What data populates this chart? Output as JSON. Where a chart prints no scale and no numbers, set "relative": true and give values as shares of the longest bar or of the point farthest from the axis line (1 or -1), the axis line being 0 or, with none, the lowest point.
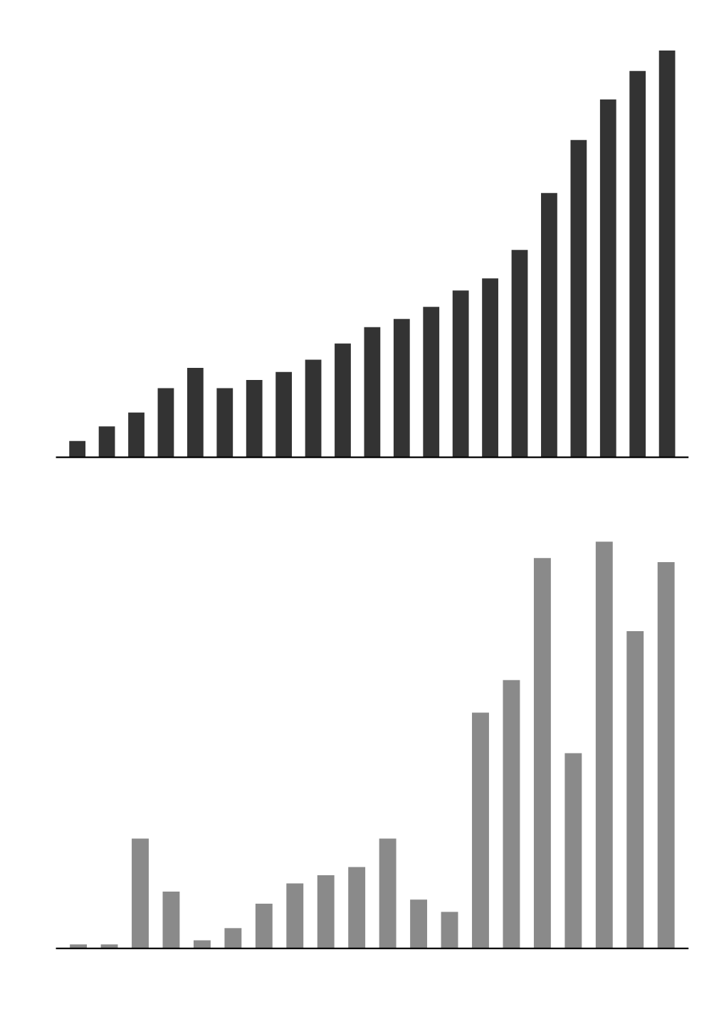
{
  "chart_data": [
    {
      "type": "bar",
      "relative": true,
      "categories": [
        null,
        null,
        null,
        null,
        null,
        null,
        null,
        null,
        null,
        null,
        null,
        null,
        null,
        null,
        null,
        null,
        null,
        null,
        null,
        null,
        null
      ],
      "series": [
        {
          "color": "#333333",
          "values": [
            0.04,
            0.076,
            0.11,
            0.17,
            0.22,
            0.17,
            0.19,
            0.21,
            0.24,
            0.28,
            0.32,
            0.34,
            0.37,
            0.41,
            0.44,
            0.51,
            0.65,
            0.78,
            0.88,
            0.95,
            1.0
          ]
        }
      ]
    },
    {
      "type": "bar",
      "relative": true,
      "categories": [
        null,
        null,
        null,
        null,
        null,
        null,
        null,
        null,
        null,
        null,
        null,
        null,
        null,
        null,
        null,
        null,
        null,
        null,
        null,
        null
      ],
      "series": [
        {
          "color": "#8a8a8a",
          "values": [
            0.01,
            0.01,
            0.27,
            0.14,
            0.02,
            0.05,
            0.11,
            0.16,
            0.18,
            0.2,
            0.27,
            0.12,
            0.09,
            0.58,
            0.66,
            0.96,
            0.48,
            1.0,
            0.78,
            0.95
          ]
        }
      ]
    }
  ]
}
